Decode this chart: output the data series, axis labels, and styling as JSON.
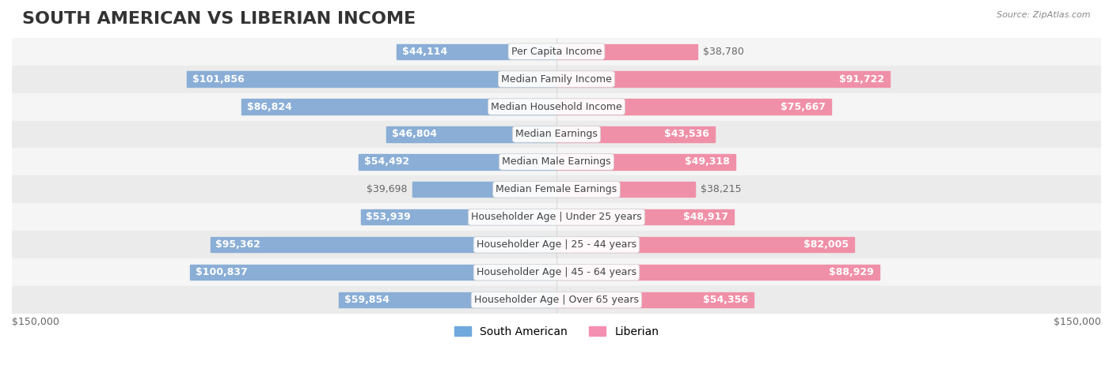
{
  "title": "SOUTH AMERICAN VS LIBERIAN INCOME",
  "source": "Source: ZipAtlas.com",
  "categories": [
    "Per Capita Income",
    "Median Family Income",
    "Median Household Income",
    "Median Earnings",
    "Median Male Earnings",
    "Median Female Earnings",
    "Householder Age | Under 25 years",
    "Householder Age | 25 - 44 years",
    "Householder Age | 45 - 64 years",
    "Householder Age | Over 65 years"
  ],
  "south_american": [
    44114,
    101856,
    86824,
    46804,
    54492,
    39698,
    53939,
    95362,
    100837,
    59854
  ],
  "liberian": [
    38780,
    91722,
    75667,
    43536,
    49318,
    38215,
    48917,
    82005,
    88929,
    54356
  ],
  "sa_labels": [
    "$44,114",
    "$101,856",
    "$86,824",
    "$46,804",
    "$54,492",
    "$39,698",
    "$53,939",
    "$95,362",
    "$100,837",
    "$59,854"
  ],
  "lib_labels": [
    "$38,780",
    "$91,722",
    "$75,667",
    "$43,536",
    "$49,318",
    "$38,215",
    "$48,917",
    "$82,005",
    "$88,929",
    "$54,356"
  ],
  "max_value": 150000,
  "sa_color": "#8aaed6",
  "lib_color": "#f090a8",
  "sa_color_dark": "#6699cc",
  "lib_color_dark": "#ee6688",
  "sa_legend_color": "#6fa8dc",
  "lib_legend_color": "#f48fb1",
  "row_bg_light": "#f5f5f5",
  "row_bg_alt": "#ebebeb",
  "label_color_inside": "#ffffff",
  "label_color_outside": "#888888",
  "category_bg": "#ffffff",
  "title_fontsize": 16,
  "label_fontsize": 9,
  "cat_fontsize": 9,
  "axis_label_fontsize": 9,
  "legend_fontsize": 10
}
